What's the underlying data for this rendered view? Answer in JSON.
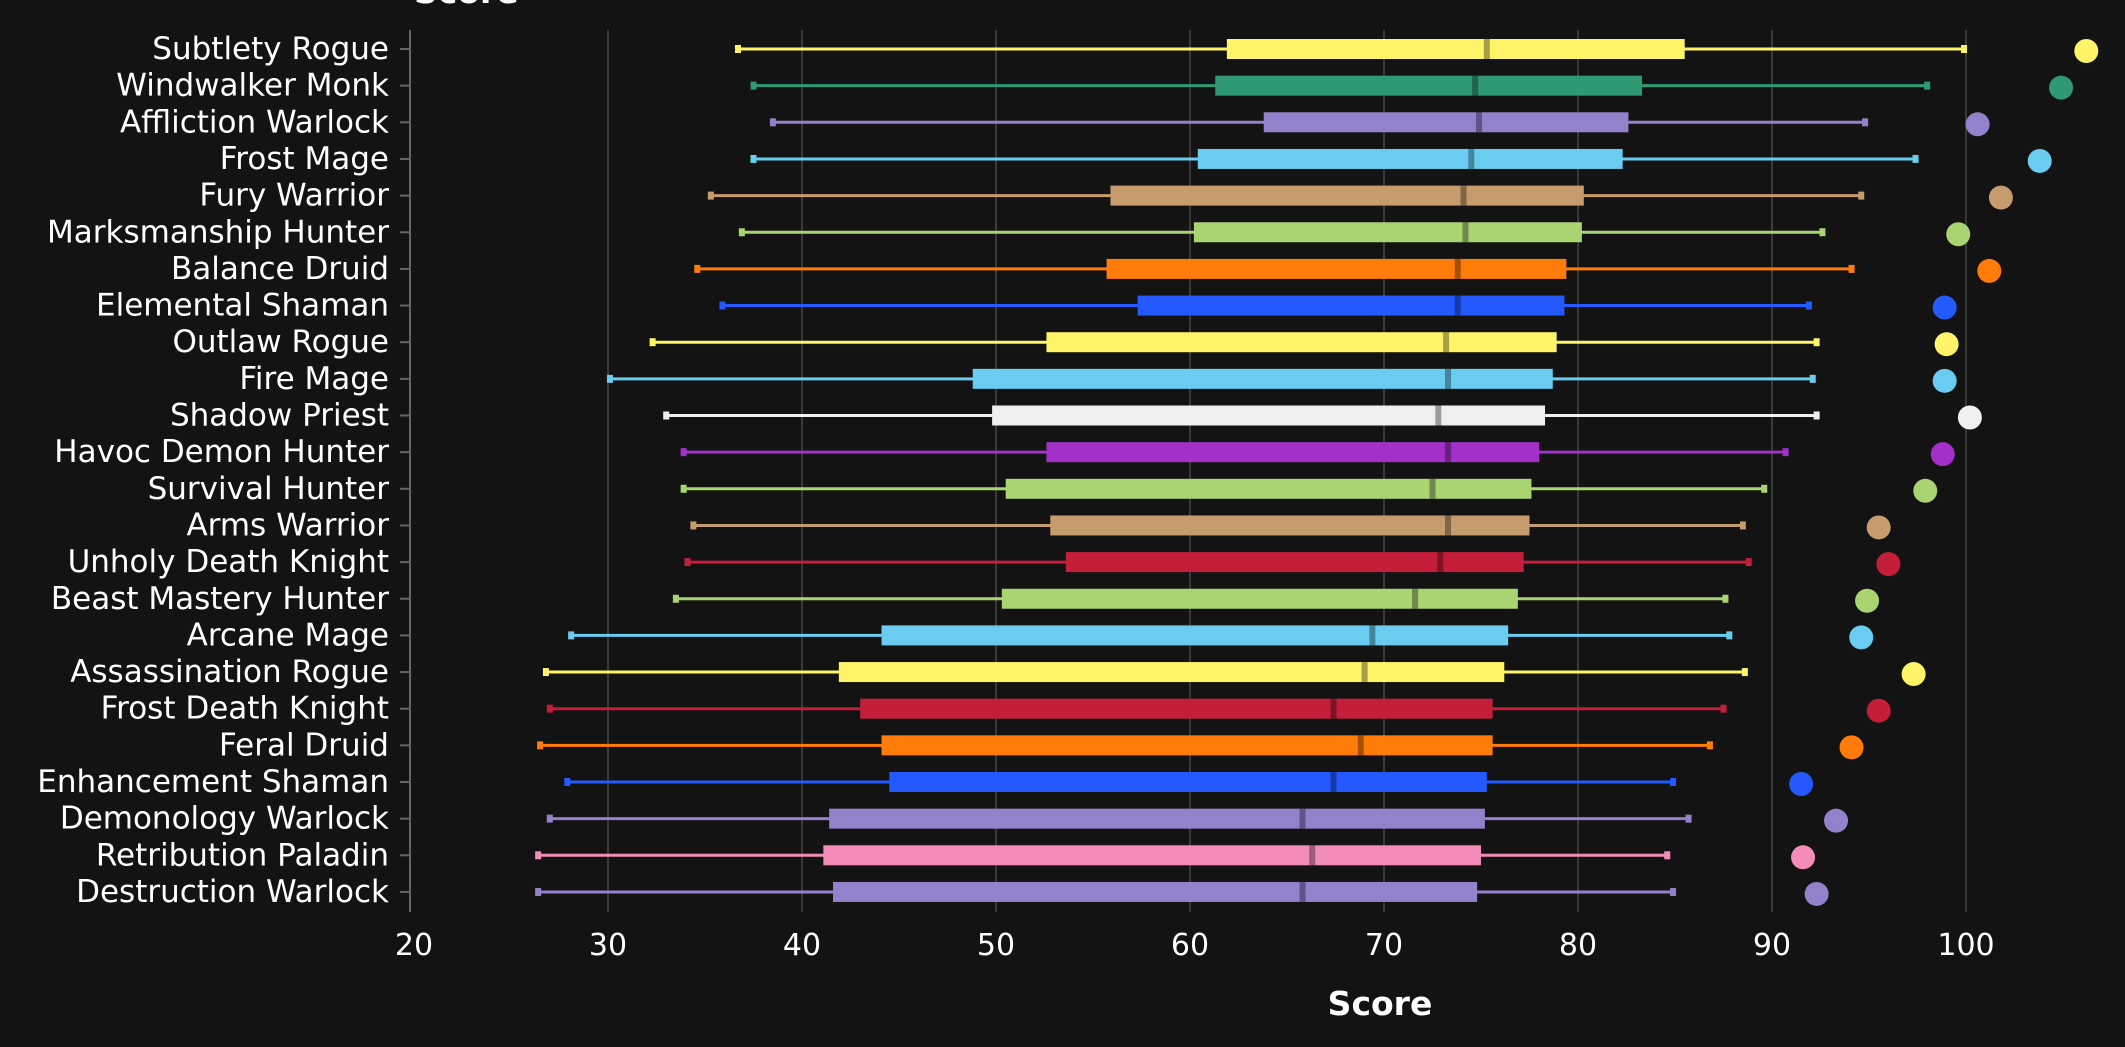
{
  "chart_data": {
    "type": "box",
    "title": "Score",
    "xlabel": "Score",
    "xlim": [
      20,
      106
    ],
    "xticks": [
      20,
      30,
      40,
      50,
      60,
      70,
      80,
      90,
      100
    ],
    "grid": "vertical",
    "legend": "none",
    "series": [
      {
        "name": "Subtlety Rogue",
        "color": "#FFF468",
        "min": 36.7,
        "q1": 61.9,
        "median": 75.3,
        "q3": 85.5,
        "max": 99.9,
        "top": 106.2
      },
      {
        "name": "Windwalker Monk",
        "color": "#2E9972",
        "min": 37.5,
        "q1": 61.3,
        "median": 74.7,
        "q3": 83.3,
        "max": 98.0,
        "top": 104.9
      },
      {
        "name": "Affliction Warlock",
        "color": "#9381CC",
        "min": 38.5,
        "q1": 63.8,
        "median": 74.9,
        "q3": 82.6,
        "max": 94.8,
        "top": 100.6
      },
      {
        "name": "Frost Mage",
        "color": "#69CCF0",
        "min": 37.5,
        "q1": 60.4,
        "median": 74.5,
        "q3": 82.3,
        "max": 97.4,
        "top": 103.8
      },
      {
        "name": "Fury Warrior",
        "color": "#C69B6D",
        "min": 35.3,
        "q1": 55.9,
        "median": 74.1,
        "q3": 80.3,
        "max": 94.6,
        "top": 101.8
      },
      {
        "name": "Marksmanship Hunter",
        "color": "#AAD372",
        "min": 36.9,
        "q1": 60.2,
        "median": 74.2,
        "q3": 80.2,
        "max": 92.6,
        "top": 99.6
      },
      {
        "name": "Balance Druid",
        "color": "#FF7C0A",
        "min": 34.6,
        "q1": 55.7,
        "median": 73.8,
        "q3": 79.4,
        "max": 94.1,
        "top": 101.2
      },
      {
        "name": "Elemental Shaman",
        "color": "#2359FF",
        "min": 35.9,
        "q1": 57.3,
        "median": 73.8,
        "q3": 79.3,
        "max": 91.9,
        "top": 98.9
      },
      {
        "name": "Outlaw Rogue",
        "color": "#FFF468",
        "min": 32.3,
        "q1": 52.6,
        "median": 73.2,
        "q3": 78.9,
        "max": 92.3,
        "top": 99.0
      },
      {
        "name": "Fire Mage",
        "color": "#69CCF0",
        "min": 30.1,
        "q1": 48.8,
        "median": 73.3,
        "q3": 78.7,
        "max": 92.1,
        "top": 98.9
      },
      {
        "name": "Shadow Priest",
        "color": "#F0F0F0",
        "min": 33.0,
        "q1": 49.8,
        "median": 72.8,
        "q3": 78.3,
        "max": 92.3,
        "top": 100.2
      },
      {
        "name": "Havoc Demon Hunter",
        "color": "#A330C9",
        "min": 33.9,
        "q1": 52.6,
        "median": 73.3,
        "q3": 78.0,
        "max": 90.7,
        "top": 98.8
      },
      {
        "name": "Survival Hunter",
        "color": "#AAD372",
        "min": 33.9,
        "q1": 50.5,
        "median": 72.5,
        "q3": 77.6,
        "max": 89.6,
        "top": 97.9
      },
      {
        "name": "Arms Warrior",
        "color": "#C69B6D",
        "min": 34.4,
        "q1": 52.8,
        "median": 73.3,
        "q3": 77.5,
        "max": 88.5,
        "top": 95.5
      },
      {
        "name": "Unholy Death Knight",
        "color": "#C41E3A",
        "min": 34.1,
        "q1": 53.6,
        "median": 72.9,
        "q3": 77.2,
        "max": 88.8,
        "top": 96.0
      },
      {
        "name": "Beast Mastery Hunter",
        "color": "#AAD372",
        "min": 33.5,
        "q1": 50.3,
        "median": 71.6,
        "q3": 76.9,
        "max": 87.6,
        "top": 94.9
      },
      {
        "name": "Arcane Mage",
        "color": "#69CCF0",
        "min": 28.1,
        "q1": 44.1,
        "median": 69.4,
        "q3": 76.4,
        "max": 87.8,
        "top": 94.6
      },
      {
        "name": "Assassination Rogue",
        "color": "#FFF468",
        "min": 26.8,
        "q1": 41.9,
        "median": 69.0,
        "q3": 76.2,
        "max": 88.6,
        "top": 97.3
      },
      {
        "name": "Frost Death Knight",
        "color": "#C41E3A",
        "min": 27.0,
        "q1": 43.0,
        "median": 67.4,
        "q3": 75.6,
        "max": 87.5,
        "top": 95.5
      },
      {
        "name": "Feral Druid",
        "color": "#FF7C0A",
        "min": 26.5,
        "q1": 44.1,
        "median": 68.8,
        "q3": 75.6,
        "max": 86.8,
        "top": 94.1
      },
      {
        "name": "Enhancement Shaman",
        "color": "#2359FF",
        "min": 27.9,
        "q1": 44.5,
        "median": 67.4,
        "q3": 75.3,
        "max": 84.9,
        "top": 91.5
      },
      {
        "name": "Demonology Warlock",
        "color": "#9381CC",
        "min": 27.0,
        "q1": 41.4,
        "median": 65.8,
        "q3": 75.2,
        "max": 85.7,
        "top": 93.3
      },
      {
        "name": "Retribution Paladin",
        "color": "#F48CBA",
        "min": 26.4,
        "q1": 41.1,
        "median": 66.3,
        "q3": 75.0,
        "max": 84.6,
        "top": 91.6
      },
      {
        "name": "Destruction Warlock",
        "color": "#9381CC",
        "min": 26.4,
        "q1": 41.6,
        "median": 65.8,
        "q3": 74.8,
        "max": 84.9,
        "top": 92.3
      }
    ]
  }
}
